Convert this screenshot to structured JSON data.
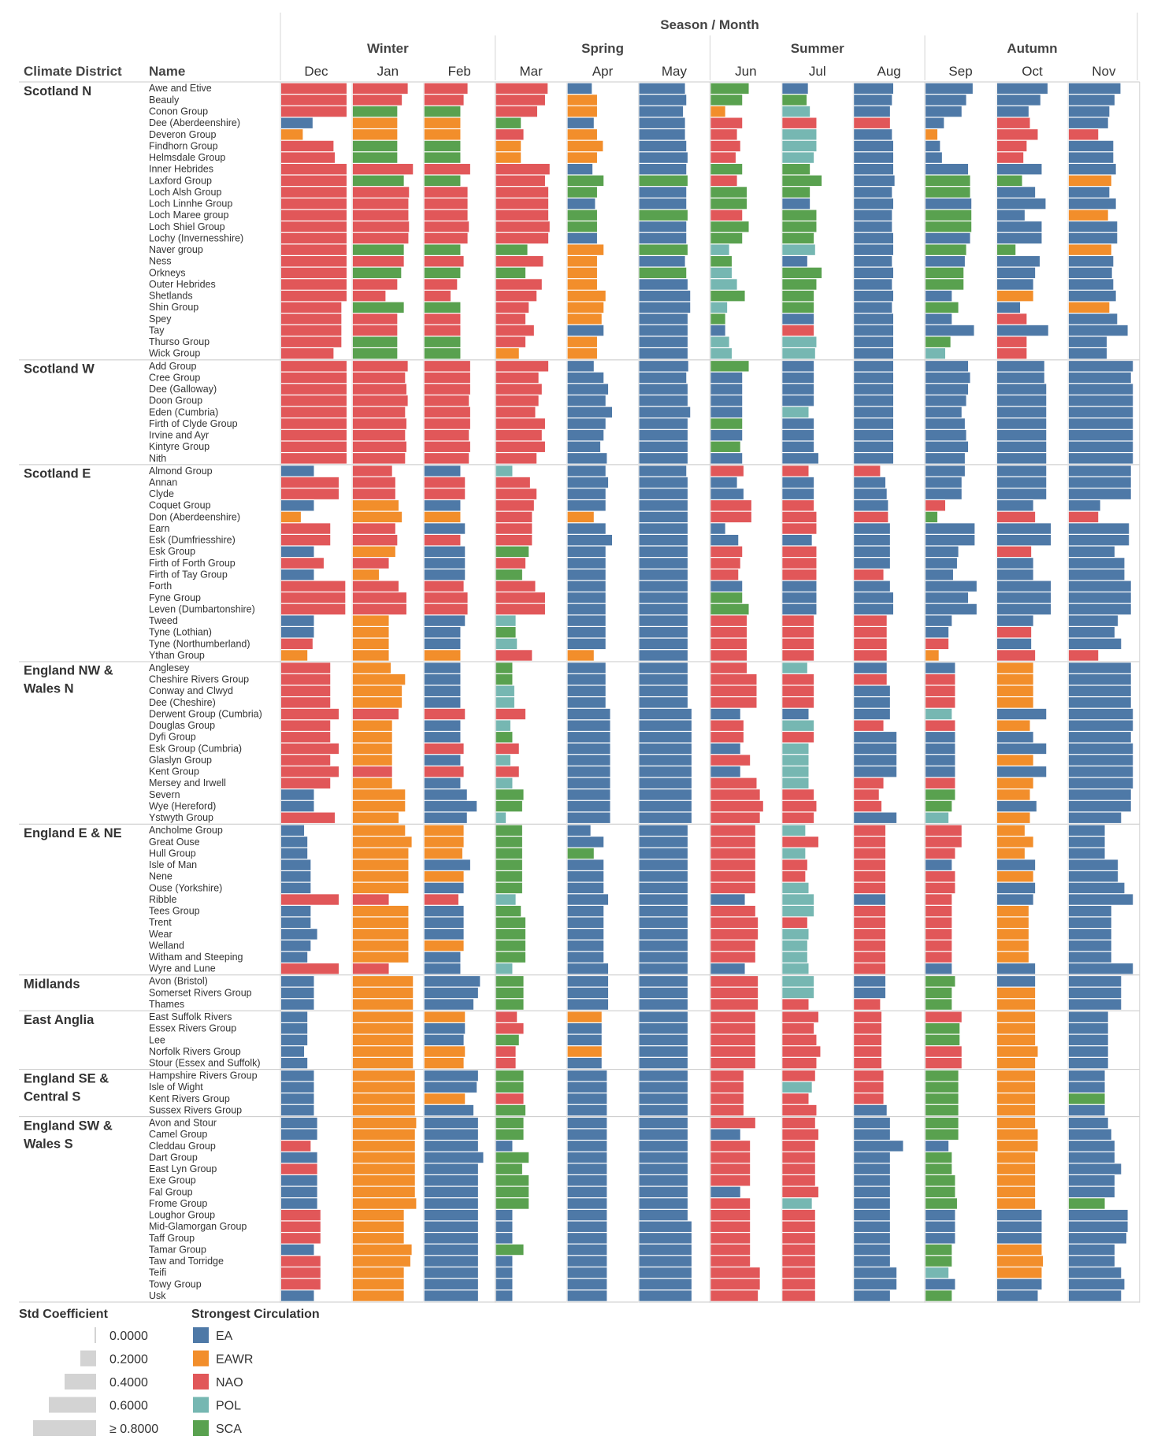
{
  "chart_data": {
    "type": "bar",
    "title": "Season / Month",
    "column_headers": {
      "district": "Climate District",
      "name": "Name"
    },
    "seasons": [
      {
        "name": "Winter",
        "months": [
          "Dec",
          "Jan",
          "Feb"
        ]
      },
      {
        "name": "Spring",
        "months": [
          "Mar",
          "Apr",
          "May"
        ]
      },
      {
        "name": "Summer",
        "months": [
          "Jun",
          "Jul",
          "Aug"
        ]
      },
      {
        "name": "Autumn",
        "months": [
          "Sep",
          "Oct",
          "Nov"
        ]
      }
    ],
    "value_legend": {
      "title": "Std Coefficient",
      "ticks": [
        "0.0000",
        "0.2000",
        "0.4000",
        "0.6000",
        "≥ 0.8000"
      ],
      "tick_values": [
        0.0,
        0.2,
        0.4,
        0.6,
        0.8
      ]
    },
    "color_legend": {
      "title": "Strongest Circulation",
      "items": [
        {
          "code": "EA",
          "color": "#4e79a7"
        },
        {
          "code": "EAWR",
          "color": "#f28e2b"
        },
        {
          "code": "NAO",
          "color": "#e15759"
        },
        {
          "code": "POL",
          "color": "#76b7b2"
        },
        {
          "code": "SCA",
          "color": "#59a14f"
        }
      ]
    },
    "cell_format": "one string per month Dec..Nov; each token = circulation code letter (E=EA, W=EAWR, N=NAO, P=POL, S=SCA) + std coefficient",
    "districts": [
      {
        "name": "Scotland N",
        "rows": [
          {
            "name": "Awe and Etive",
            "cells": "N1.0 N.84 N.66 N.79 E.37 E.70 S.58 E.39 E.60 E.72 E.77 E.79"
          },
          {
            "name": "Beauly",
            "cells": "N1.0 N.75 N.60 N.75 W.45 E.72 S.48 S.37 E.58 E.62 E.66 E.70"
          },
          {
            "name": "Conon Group",
            "cells": "N1.0 S.68 S.55 N.63 W.45 E.67 W.22 P.42 E.55 E.55 E.48 E.62"
          },
          {
            "name": "Dee (Aberdeenshire)",
            "cells": "E.48 W.68 W.55 S.38 E.40 E.70 N.48 N.52 N.55 E.28 N.50 E.60"
          },
          {
            "name": "Deveron Group",
            "cells": "W.33 W.68 W.55 N.42 W.45 E.70 N.40 P.52 E.58 W.18 N.62 N.45"
          },
          {
            "name": "Findhorn Group",
            "cells": "N.80 S.68 S.55 W.38 W.54 E.72 N.45 P.52 E.60 E.22 N.45 E.68"
          },
          {
            "name": "Helmsdale Group",
            "cells": "N.82 S.68 S.55 W.38 W.45 E.74 N.38 P.48 E.60 E.25 N.40 E.68"
          },
          {
            "name": "Inner Hebrides",
            "cells": "N1.0 N.92 N.70 N.82 E.38 E.72 S.48 S.42 E.60 E.65 E.68 E.72"
          },
          {
            "name": "Laxford Group",
            "cells": "N1.0 S.78 S.55 N.75 S.55 S.74 N.40 S.60 E.62 S.68 S.38 W.65"
          },
          {
            "name": "Loch Alsh Group",
            "cells": "N1.0 N.86 N.66 N.80 S.45 E.72 S.55 S.42 E.58 S.68 E.58 E.62"
          },
          {
            "name": "Loch Linnhe Group",
            "cells": "N1.0 N.85 N.66 N.80 E.42 E.72 S.55 E.42 E.60 E.70 E.74 E.72"
          },
          {
            "name": "Loch Maree group",
            "cells": "N1.0 N.85 N.66 N.80 S.45 S.74 N.48 S.52 E.58 S.70 E.42 W.60"
          },
          {
            "name": "Loch Shiel Group",
            "cells": "N1.0 N.86 N.68 N.82 S.45 E.72 S.58 S.52 E.58 S.70 E.68 E.74"
          },
          {
            "name": "Lochy (Invernesshire)",
            "cells": "N1.0 N.85 N.66 N.80 E.45 E.72 S.48 S.48 E.60 E.68 E.68 E.74"
          },
          {
            "name": "Naver group",
            "cells": "N1.0 S.78 S.55 S.48 W.55 S.74 P.28 P.50 E.60 S.62 S.28 W.65"
          },
          {
            "name": "Ness",
            "cells": "N1.0 N.78 N.60 N.72 W.45 E.70 S.32 E.38 E.58 E.60 E.65 E.68"
          },
          {
            "name": "Orkneys",
            "cells": "N1.0 S.74 S.55 S.45 W.45 S.72 P.32 S.60 E.60 S.58 E.58 E.66"
          },
          {
            "name": "Outer Hebrides",
            "cells": "N1.0 N.68 N.50 N.70 W.45 E.74 P.40 S.52 E.58 S.58 E.55 E.68"
          },
          {
            "name": "Shetlands",
            "cells": "N1.0 N.50 N.40 N.62 W.58 E.78 S.52 S.48 E.60 E.40 W.55 E.72"
          },
          {
            "name": "Shin Group",
            "cells": "N.92 S.78 S.55 N.50 W.55 E.78 P.25 S.48 E.58 S.50 E.35 W.62"
          },
          {
            "name": "Spey",
            "cells": "N.92 N.68 N.55 N.45 W.52 E.74 S.22 E.48 E.60 E.40 N.45 E.74"
          },
          {
            "name": "Tay",
            "cells": "N.92 N.68 N.55 N.58 E.55 E.74 E.22 N.48 E.60 E.74 E.78 E.90"
          },
          {
            "name": "Thurso Group",
            "cells": "N.92 S.68 S.55 N.45 W.45 E.74 P.28 P.52 E.60 S.38 N.45 E.58"
          },
          {
            "name": "Wick Group",
            "cells": "N.80 S.68 S.55 W.35 W.45 E.74 P.32 P.50 E.60 P.30 N.45 E.58"
          }
        ]
      },
      {
        "name": "Scotland W",
        "rows": [
          {
            "name": "Add Group",
            "cells": "N1.0 N.84 N.70 N.80 E.40 E.75 S.58 E.48 E.60 E.65 E.72 E.98"
          },
          {
            "name": "Cree Group",
            "cells": "N1.0 N.80 N.70 N.65 E.55 E.72 E.48 E.48 E.60 E.68 E.72 E.95"
          },
          {
            "name": "Dee (Galloway)",
            "cells": "N1.0 N.82 N.70 N.70 E.62 E.74 E.48 E.48 E.60 E.65 E.75 E.98"
          },
          {
            "name": "Doon Group",
            "cells": "N1.0 N.84 N.68 N.65 E.58 E.74 E.48 E.48 E.60 E.62 E.75 E.98"
          },
          {
            "name": "Eden (Cumbria)",
            "cells": "N1.0 N.80 N.70 N.60 E.68 E.78 E.48 P.40 E.60 E.55 E.75 E.98"
          },
          {
            "name": "Firth of Clyde Group",
            "cells": "N1.0 N.82 N.70 N.75 E.58 E.74 S.48 E.48 E.60 E.60 E.75 E.98"
          },
          {
            "name": "Irvine and Ayr",
            "cells": "N1.0 N.80 N.68 N.70 E.55 E.74 E.48 E.48 E.60 E.62 E.75 E.98"
          },
          {
            "name": "Kintyre Group",
            "cells": "N1.0 N.82 N.70 N.75 E.50 E.74 S.45 E.48 E.60 E.65 E.75 E.98"
          },
          {
            "name": "Nith",
            "cells": "N1.0 N.80 N.68 N.62 E.60 E.74 E.48 E.55 E.60 E.60 E.75 E.98"
          }
        ]
      },
      {
        "name": "Scotland E",
        "rows": [
          {
            "name": "Almond Group",
            "cells": "E.50 N.60 E.55 P.25 E.58 E.72 N.50 N.40 N.40 E.60 E.75 E.95"
          },
          {
            "name": "Annan",
            "cells": "N.88 N.65 N.62 N.52 E.62 E.74 E.40 E.48 E.48 E.55 E.75 E.95"
          },
          {
            "name": "Clyde",
            "cells": "N.88 N.65 N.62 N.62 E.58 E.74 E.50 E.48 E.50 E.55 E.75 E.95"
          },
          {
            "name": "Coquet Group",
            "cells": "E.50 W.70 E.55 N.58 E.58 E.74 N.62 N.48 E.52 N.30 E.55 E.48"
          },
          {
            "name": "Don (Aberdeenshire)",
            "cells": "W.30 W.75 W.55 N.55 W.40 E.74 N.62 N.52 N.52 S.18 N.58 N.45"
          },
          {
            "name": "Earn",
            "cells": "N.75 N.65 E.62 N.55 E.58 E.74 E.22 N.52 E.55 E.75 E.82 E.92"
          },
          {
            "name": "Esk (Dumfriesshire)",
            "cells": "N.75 N.68 N.55 N.55 E.68 E.74 E.42 E.45 E.55 E.75 E.82 E.92"
          },
          {
            "name": "Esk Group",
            "cells": "E.50 W.65 E.62 S.50 E.58 E.74 N.48 N.52 E.55 E.50 N.52 E.70"
          },
          {
            "name": "Firth of Forth Group",
            "cells": "N.65 N.55 E.62 N.45 E.58 E.74 N.45 N.52 E.55 E.48 E.55 E.85"
          },
          {
            "name": "Firth of Tay Group",
            "cells": "E.50 W.40 E.62 S.40 E.58 E.74 N.42 N.52 N.45 E.42 E.55 E.85"
          },
          {
            "name": "Forth",
            "cells": "N.98 N.70 N.60 N.60 E.58 E.74 E.48 E.52 E.55 E.78 E.82 E.95"
          },
          {
            "name": "Fyne Group",
            "cells": "N.98 N.82 N.66 N.75 E.58 E.74 S.48 E.52 E.60 E.65 E.82 E.95"
          },
          {
            "name": "Leven (Dumbartonshire)",
            "cells": "N.98 N.82 N.66 N.75 E.58 E.74 S.58 E.52 E.60 E.78 E.82 E.95"
          },
          {
            "name": "Tweed",
            "cells": "E.50 W.55 E.62 P.30 E.58 E.74 N.55 N.48 N.50 E.40 E.55 E.75"
          },
          {
            "name": "Tyne (Lothian)",
            "cells": "E.50 W.55 E.55 S.30 E.58 E.74 N.55 N.48 N.50 E.35 N.52 E.70"
          },
          {
            "name": "Tyne (Northumberland)",
            "cells": "N.48 W.55 E.55 P.32 E.58 E.74 N.55 N.48 N.50 N.35 E.52 E.80"
          },
          {
            "name": "Ythan Group",
            "cells": "W.40 W.55 W.55 N.55 W.40 E.74 N.55 N.48 N.50 W.20 N.58 N.45"
          }
        ]
      },
      {
        "name": "England NW & Wales N",
        "rows": [
          {
            "name": "Anglesey",
            "cells": "N.75 W.58 E.55 S.25 E.58 E.74 N.55 P.38 E.50 E.45 W.55 E.95"
          },
          {
            "name": "Cheshire Rivers Group",
            "cells": "N.75 W.80 E.55 S.25 E.58 E.74 N.70 N.48 N.50 N.45 W.55 E.95"
          },
          {
            "name": "Conway and Clwyd",
            "cells": "N.75 W.75 E.55 P.28 E.58 E.74 N.70 N.48 E.55 N.45 W.55 E.95"
          },
          {
            "name": "Dee (Cheshire)",
            "cells": "N.75 W.75 E.55 P.28 E.58 E.74 N.70 N.48 E.55 N.45 W.55 E.95"
          },
          {
            "name": "Derwent Group (Cumbria)",
            "cells": "N.88 N.70 N.62 N.45 E.65 E.80 E.45 E.40 E.55 P.40 E.75 E.98"
          },
          {
            "name": "Douglas Group",
            "cells": "N.75 W.60 E.55 P.22 E.65 E.80 N.50 P.48 N.45 N.45 W.50 E.98"
          },
          {
            "name": "Dyfi Group",
            "cells": "N.75 W.60 E.55 S.25 E.65 E.80 N.50 N.48 E.65 E.45 E.55 E.95"
          },
          {
            "name": "Esk Group (Cumbria)",
            "cells": "N.88 W.60 N.60 N.35 E.65 E.80 E.45 P.40 E.65 E.45 E.75 E.98"
          },
          {
            "name": "Glaslyn Group",
            "cells": "N.75 W.60 E.55 P.22 E.65 E.80 N.60 P.40 E.65 E.45 W.55 E.98"
          },
          {
            "name": "Kent Group",
            "cells": "N.88 N.60 N.60 N.35 E.65 E.80 E.45 P.40 E.65 E.45 E.75 E.98"
          },
          {
            "name": "Mersey and Irwell",
            "cells": "N.75 W.60 E.55 P.25 E.65 E.80 N.70 P.40 N.45 N.45 W.55 E.98"
          },
          {
            "name": "Severn",
            "cells": "E.50 W.80 E.65 S.42 E.65 E.80 N.75 N.48 N.38 S.45 W.50 E.95"
          },
          {
            "name": "Wye (Hereford)",
            "cells": "E.50 W.80 E.80 S.40 E.65 E.80 N.80 N.52 N.42 S.40 E.60 E.95"
          },
          {
            "name": "Ystwyth Group",
            "cells": "N.82 W.70 E.65 P.15 E.65 E.80 N.75 N.48 E.65 P.35 W.50 E.80"
          }
        ]
      },
      {
        "name": "England E & NE",
        "rows": [
          {
            "name": "Ancholme Group",
            "cells": "E.35 W.80 W.60 S.40 E.35 E.74 N.68 P.35 N.48 N.55 W.42 E.55"
          },
          {
            "name": "Great Ouse",
            "cells": "E.40 W.90 W.60 S.40 E.55 E.74 N.68 N.55 N.48 N.55 W.55 E.55"
          },
          {
            "name": "Hull Group",
            "cells": "E.40 W.85 W.58 S.40 S.40 E.74 N.68 P.35 N.48 N.45 W.42 E.55"
          },
          {
            "name": "Isle of Man",
            "cells": "E.45 W.85 E.70 S.40 E.55 E.74 N.68 N.38 N.48 E.40 E.58 E.75"
          },
          {
            "name": "Nene",
            "cells": "E.45 W.85 W.60 S.40 E.55 E.74 N.68 N.35 N.48 N.45 W.55 E.75"
          },
          {
            "name": "Ouse (Yorkshire)",
            "cells": "E.45 W.85 E.60 S.40 E.55 E.74 N.68 P.40 N.48 N.45 E.58 E.85"
          },
          {
            "name": "Ribble",
            "cells": "N.88 N.55 N.52 P.30 E.62 E.74 E.52 P.48 E.48 N.40 E.55 E.98"
          },
          {
            "name": "Tees Group",
            "cells": "E.45 W.85 E.60 S.38 E.55 E.74 N.68 P.48 N.48 N.40 W.48 E.65"
          },
          {
            "name": "Trent",
            "cells": "E.45 W.85 E.60 S.45 E.55 E.74 N.72 N.38 N.48 N.40 W.48 E.65"
          },
          {
            "name": "Wear",
            "cells": "E.55 W.85 E.60 S.45 E.55 E.74 N.72 P.40 N.48 N.40 W.48 E.65"
          },
          {
            "name": "Welland",
            "cells": "E.45 W.85 W.60 S.45 E.55 E.74 N.68 P.38 N.48 N.40 W.48 E.65"
          },
          {
            "name": "Witham and Steeping",
            "cells": "E.40 W.85 E.55 S.45 E.55 E.74 N.68 P.38 N.48 N.40 W.48 E.65"
          },
          {
            "name": "Wyre and Lune",
            "cells": "N.88 N.55 E.55 P.25 E.62 E.74 E.52 P.40 N.48 E.40 E.58 E.98"
          }
        ]
      },
      {
        "name": "Midlands",
        "rows": [
          {
            "name": "Avon (Bristol)",
            "cells": "E.50 W.92 E.85 S.42 E.62 E.74 N.72 P.48 E.48 S.45 E.58 E.80"
          },
          {
            "name": "Somerset Rivers Group",
            "cells": "E.50 W.92 E.82 S.42 E.62 E.74 N.72 P.48 E.48 S.40 W.58 E.80"
          },
          {
            "name": "Thames",
            "cells": "E.50 W.92 E.75 S.42 E.62 E.74 N.72 N.40 N.40 S.40 W.58 E.80"
          }
        ]
      },
      {
        "name": "East Anglia",
        "rows": [
          {
            "name": "East Suffolk Rivers",
            "cells": "E.40 W.92 W.62 N.32 W.52 E.74 N.68 N.55 N.42 N.55 W.58 E.60"
          },
          {
            "name": "Essex Rivers Group",
            "cells": "E.40 W.92 E.62 N.42 E.52 E.74 N.68 N.48 N.42 S.52 W.58 E.60"
          },
          {
            "name": "Lee",
            "cells": "E.40 W.92 E.60 S.35 E.52 E.74 N.68 N.52 N.42 S.52 W.58 E.60"
          },
          {
            "name": "Norfolk Rivers Group",
            "cells": "E.35 W.92 W.62 N.30 W.52 E.74 N.68 N.58 N.42 N.55 W.62 E.60"
          },
          {
            "name": "Stour (Essex and Suffolk)",
            "cells": "E.40 W.92 W.60 N.30 E.52 E.74 N.68 N.52 N.42 N.55 W.58 E.60"
          }
        ]
      },
      {
        "name": "England SE & Central S",
        "rows": [
          {
            "name": "Hampshire Rivers Group",
            "cells": "E.50 W.95 E.82 S.42 E.60 E.74 N.50 N.50 N.45 S.50 W.58 E.55"
          },
          {
            "name": "Isle of Wight",
            "cells": "E.50 W.95 E.80 S.42 E.60 E.74 N.50 P.45 N.45 S.50 W.58 E.55"
          },
          {
            "name": "Kent Rivers Group",
            "cells": "E.50 W.95 W.62 N.42 E.60 E.74 N.50 N.40 N.45 S.50 W.58 S.55"
          },
          {
            "name": "Sussex Rivers Group",
            "cells": "E.50 W.95 E.75 S.45 E.60 E.74 N.50 N.52 E.50 S.50 W.58 E.55"
          }
        ]
      },
      {
        "name": "England SW & Wales S",
        "rows": [
          {
            "name": "Avon and Stour",
            "cells": "E.55 W.97 E.82 S.42 E.60 E.74 N.68 N.50 E.55 S.50 W.58 E.60"
          },
          {
            "name": "Camel Group",
            "cells": "E.55 W.95 E.82 S.42 E.60 E.74 E.45 N.55 E.55 S.50 W.62 E.65"
          },
          {
            "name": "Cleddau Group",
            "cells": "N.45 W.95 E.82 E.25 E.60 E.74 N.60 N.50 E.75 E.35 W.62 E.70"
          },
          {
            "name": "Dart Group",
            "cells": "E.55 W.95 E.90 S.50 E.60 E.74 N.60 N.50 E.55 S.40 W.58 E.70"
          },
          {
            "name": "East Lyn Group",
            "cells": "N.55 W.95 E.82 S.40 E.60 E.74 N.60 N.50 E.55 S.40 W.58 E.80"
          },
          {
            "name": "Exe Group",
            "cells": "E.55 W.95 E.82 S.50 E.60 E.74 N.60 N.50 E.55 S.45 W.58 E.70"
          },
          {
            "name": "Fal Group",
            "cells": "E.55 W.95 E.82 S.50 E.60 E.74 E.45 N.55 E.55 S.45 W.58 E.70"
          },
          {
            "name": "Frome Group",
            "cells": "E.55 W.97 E.82 S.50 E.60 E.74 N.60 P.45 E.55 S.48 W.58 S.55"
          },
          {
            "name": "Loughor Group",
            "cells": "N.60 W.78 E.82 E.25 E.60 E.74 N.60 N.50 E.55 E.45 E.68 E.90"
          },
          {
            "name": "Mid-Glamorgan Group",
            "cells": "N.60 W.78 E.82 E.25 E.60 E.80 N.60 N.50 E.55 E.45 E.68 E.90"
          },
          {
            "name": "Taff Group",
            "cells": "N.60 W.78 E.82 E.25 E.60 E.80 N.60 N.50 E.55 E.45 E.68 E.88"
          },
          {
            "name": "Tamar Group",
            "cells": "E.50 W.90 E.82 S.42 E.60 E.80 N.60 N.50 E.55 S.40 W.68 E.70"
          },
          {
            "name": "Taw and Torridge",
            "cells": "N.60 W.88 E.82 E.25 E.60 E.80 N.60 N.50 E.55 S.40 W.70 E.70"
          },
          {
            "name": "Teifi",
            "cells": "N.60 W.78 E.82 E.25 E.60 E.80 N.75 N.50 E.65 P.35 W.68 E.80"
          },
          {
            "name": "Towy Group",
            "cells": "N.60 W.78 E.82 E.25 E.60 E.80 N.75 N.50 E.65 E.45 E.68 E.85"
          },
          {
            "name": "Usk",
            "cells": "E.50 W.78 E.82 E.25 E.60 E.80 N.72 N.50 E.55 S.40 E.62 E.80"
          }
        ]
      }
    ]
  }
}
